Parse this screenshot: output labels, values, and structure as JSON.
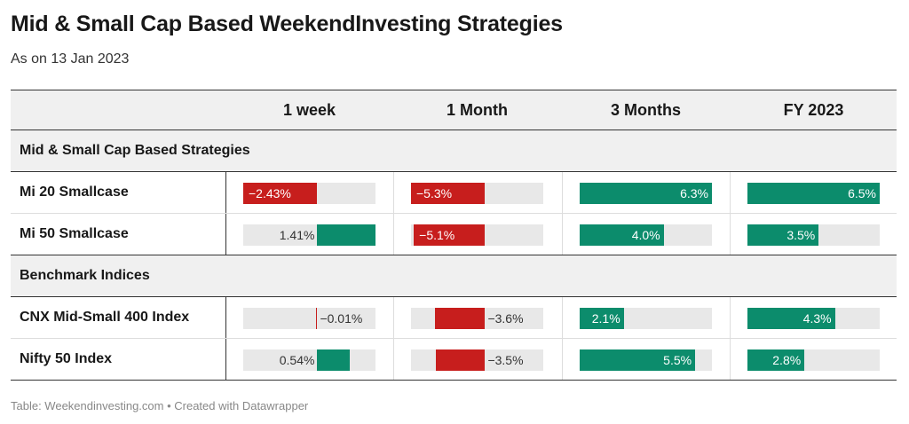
{
  "title": "Mid & Small Cap Based WeekendInvesting Strategies",
  "subtitle": "As on 13 Jan 2023",
  "footer": "Table: Weekendinvesting.com • Created with Datawrapper",
  "colors": {
    "negative": "#c71e1d",
    "positive": "#0c8c6c",
    "track": "#e8e8e8",
    "header_bg": "#f0f0f0"
  },
  "chart_data": {
    "type": "table",
    "columns": [
      "1 week",
      "1 Month",
      "3 Months",
      "FY 2023"
    ],
    "column_types": [
      "diverging",
      "diverging",
      "bar",
      "bar"
    ],
    "column_ranges": [
      [
        -2.43,
        2.43
      ],
      [
        -5.3,
        5.3
      ],
      [
        0,
        6.3
      ],
      [
        0,
        6.5
      ]
    ],
    "groups": [
      {
        "name": "Mid & Small Cap Based Strategies",
        "rows": [
          {
            "name": "Mi 20 Smallcase",
            "values": [
              -2.43,
              -5.3,
              6.3,
              6.5
            ],
            "labels": [
              "−2.43%",
              "−5.3%",
              "6.3%",
              "6.5%"
            ]
          },
          {
            "name": "Mi 50 Smallcase",
            "values": [
              1.41,
              -5.1,
              4.0,
              3.5
            ],
            "labels": [
              "1.41%",
              "−5.1%",
              "4.0%",
              "3.5%"
            ]
          }
        ]
      },
      {
        "name": "Benchmark Indices",
        "rows": [
          {
            "name": "CNX Mid-Small 400 Index",
            "values": [
              -0.01,
              -3.6,
              2.1,
              4.3
            ],
            "labels": [
              "−0.01%",
              "−3.6%",
              "2.1%",
              "4.3%"
            ]
          },
          {
            "name": "Nifty 50 Index",
            "values": [
              0.54,
              -3.5,
              5.5,
              2.8
            ],
            "labels": [
              "0.54%",
              "−3.5%",
              "5.5%",
              "2.8%"
            ]
          }
        ]
      }
    ]
  }
}
